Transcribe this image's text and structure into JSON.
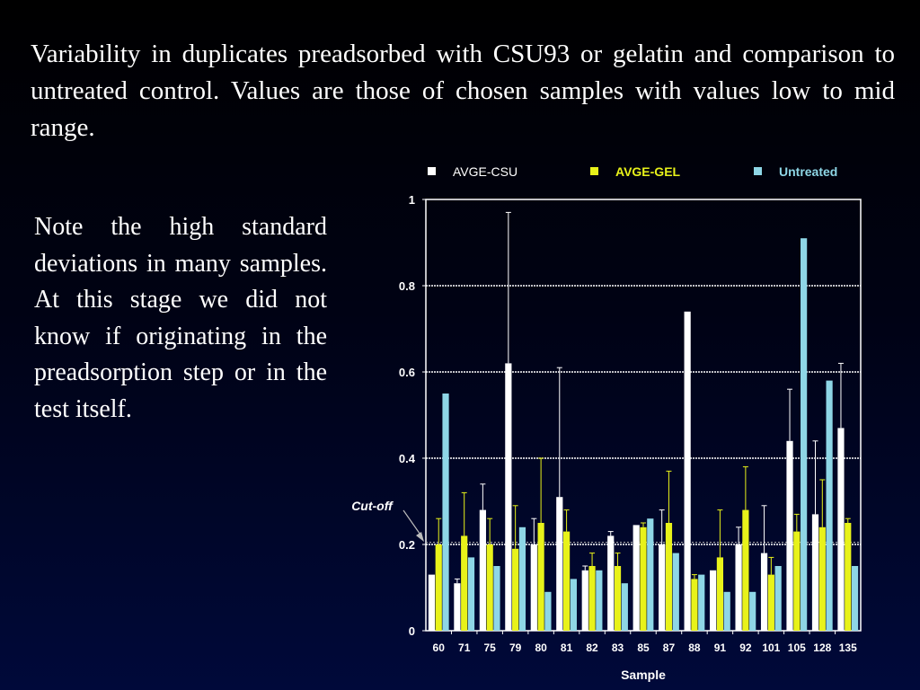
{
  "slide": {
    "title": "Variability in duplicates preadsorbed with CSU93 or gelatin and comparison to untreated control. Values are those of chosen samples with values low to mid range.",
    "note": "Note the high standard deviations in many samples. At this stage we did not know if originating in the preadsorption step or in the test itself."
  },
  "chart_data": {
    "type": "bar",
    "categories": [
      "60",
      "71",
      "75",
      "79",
      "80",
      "81",
      "82",
      "83",
      "85",
      "87",
      "88",
      "91",
      "92",
      "101",
      "105",
      "128",
      "135"
    ],
    "series": [
      {
        "name": "AVGE-CSU",
        "color": "#ffffff",
        "values": [
          0.13,
          0.11,
          0.28,
          0.62,
          0.2,
          0.31,
          0.14,
          0.22,
          0.245,
          0.2,
          0.74,
          0.14,
          0.2,
          0.18,
          0.44,
          0.27,
          0.47
        ],
        "error": [
          0,
          0.01,
          0.06,
          0.35,
          0.06,
          0.3,
          0.01,
          0.01,
          0,
          0.08,
          0,
          0,
          0.04,
          0.11,
          0.12,
          0.17,
          0.15
        ]
      },
      {
        "name": "AVGE-GEL",
        "color": "#e8f21a",
        "values": [
          0.2,
          0.22,
          0.2,
          0.19,
          0.25,
          0.23,
          0.15,
          0.15,
          0.24,
          0.25,
          0.12,
          0.17,
          0.28,
          0.13,
          0.23,
          0.24,
          0.25
        ],
        "error": [
          0.06,
          0.1,
          0.06,
          0.1,
          0.15,
          0.05,
          0.03,
          0.03,
          0.01,
          0.12,
          0.01,
          0.11,
          0.1,
          0.04,
          0.04,
          0.11,
          0.01
        ]
      },
      {
        "name": "Untreated",
        "color": "#8ed6e6",
        "values": [
          0.55,
          0.17,
          0.15,
          0.24,
          0.09,
          0.12,
          0.14,
          0.11,
          0.26,
          0.18,
          0.13,
          0.09,
          0.09,
          0.15,
          0.91,
          0.58,
          0.15
        ]
      }
    ],
    "xlabel": "Sample",
    "ylabel": "",
    "ylim": [
      0,
      1
    ],
    "yticks": [
      "0",
      "0.2",
      "0.4",
      "0.6",
      "0.8",
      "1"
    ],
    "cutoff": {
      "label": "Cut-off",
      "value": 0.205
    },
    "grid": true,
    "legend_position": "top"
  }
}
